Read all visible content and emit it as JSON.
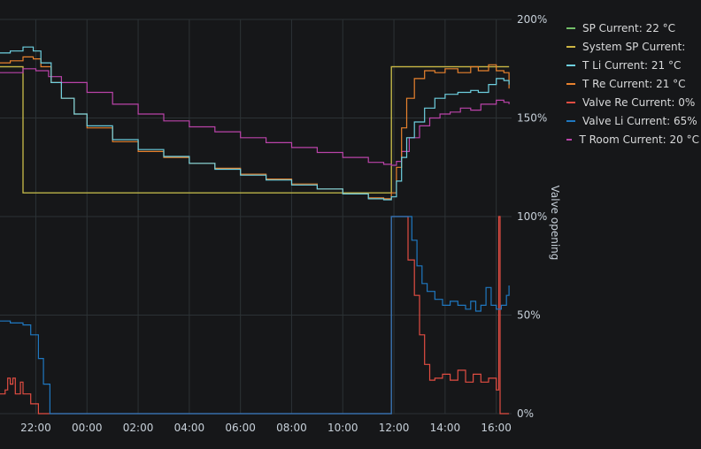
{
  "chart_data": {
    "type": "line",
    "y_axis": {
      "label": "Valve opening",
      "ticks": [
        "200%",
        "150%",
        "100%",
        "50%",
        "0%"
      ],
      "ylim": [
        0,
        200
      ]
    },
    "x_axis": {
      "ticks": [
        "22:00",
        "00:00",
        "02:00",
        "04:00",
        "06:00",
        "08:00",
        "10:00",
        "12:00",
        "14:00",
        "16:00"
      ],
      "tick_hours": [
        22,
        24,
        26,
        28,
        30,
        32,
        34,
        36,
        38,
        40
      ],
      "xlim_hours": [
        20.6,
        40.6
      ]
    },
    "grid": true,
    "legend_position": "right",
    "series": [
      {
        "name": "SP",
        "legend": "SP  Current: 22 °C",
        "color": "#73bf69",
        "points": [
          [
            20.6,
            176
          ],
          [
            21.5,
            176
          ],
          [
            21.5,
            112
          ],
          [
            35.9,
            112
          ],
          [
            35.9,
            176
          ],
          [
            40.5,
            176
          ]
        ]
      },
      {
        "name": "System SP",
        "legend": "System SP  Current:",
        "color": "#cdb543",
        "points": [
          [
            20.6,
            176
          ],
          [
            21.5,
            176
          ],
          [
            21.5,
            112
          ],
          [
            35.9,
            112
          ],
          [
            35.9,
            176
          ],
          [
            40.5,
            176
          ]
        ]
      },
      {
        "name": "T Li",
        "legend": "T Li  Current: 21 °C",
        "color": "#6ed0e0",
        "points": [
          [
            20.6,
            183
          ],
          [
            21.0,
            184
          ],
          [
            21.5,
            186
          ],
          [
            21.9,
            184
          ],
          [
            22.2,
            178
          ],
          [
            22.6,
            168
          ],
          [
            23.0,
            160
          ],
          [
            23.5,
            152
          ],
          [
            24.0,
            146
          ],
          [
            25.0,
            139
          ],
          [
            26.0,
            134
          ],
          [
            27.0,
            130.5
          ],
          [
            28.0,
            127
          ],
          [
            29.0,
            124
          ],
          [
            30.0,
            121
          ],
          [
            31.0,
            118.5
          ],
          [
            32.0,
            116
          ],
          [
            33.0,
            114
          ],
          [
            34.0,
            111.5
          ],
          [
            35.0,
            109
          ],
          [
            35.6,
            108.5
          ],
          [
            35.9,
            110
          ],
          [
            36.1,
            118
          ],
          [
            36.3,
            130
          ],
          [
            36.5,
            140
          ],
          [
            36.8,
            148
          ],
          [
            37.2,
            155
          ],
          [
            37.6,
            160
          ],
          [
            38.0,
            162
          ],
          [
            38.5,
            163
          ],
          [
            39.0,
            164
          ],
          [
            39.3,
            163
          ],
          [
            39.7,
            167
          ],
          [
            40.0,
            170
          ],
          [
            40.3,
            169
          ],
          [
            40.5,
            167
          ]
        ]
      },
      {
        "name": "T Re",
        "legend": "T Re  Current: 21 °C",
        "color": "#e8822e",
        "points": [
          [
            20.6,
            178
          ],
          [
            21.0,
            179
          ],
          [
            21.5,
            181
          ],
          [
            21.9,
            180
          ],
          [
            22.2,
            176
          ],
          [
            22.6,
            168
          ],
          [
            23.0,
            160
          ],
          [
            23.5,
            152
          ],
          [
            24.0,
            145
          ],
          [
            25.0,
            138
          ],
          [
            26.0,
            133
          ],
          [
            27.0,
            130
          ],
          [
            28.0,
            127
          ],
          [
            29.0,
            124.5
          ],
          [
            30.0,
            121.5
          ],
          [
            31.0,
            119
          ],
          [
            32.0,
            116.5
          ],
          [
            33.0,
            114
          ],
          [
            34.0,
            111.5
          ],
          [
            35.0,
            109.5
          ],
          [
            35.6,
            109
          ],
          [
            35.9,
            112
          ],
          [
            36.1,
            125
          ],
          [
            36.3,
            145
          ],
          [
            36.5,
            160
          ],
          [
            36.8,
            170
          ],
          [
            37.2,
            174
          ],
          [
            37.6,
            173
          ],
          [
            38.0,
            175
          ],
          [
            38.5,
            173
          ],
          [
            39.0,
            176
          ],
          [
            39.3,
            174
          ],
          [
            39.7,
            177
          ],
          [
            40.0,
            174
          ],
          [
            40.3,
            173
          ],
          [
            40.5,
            165
          ]
        ]
      },
      {
        "name": "Valve Re",
        "legend": "Valve Re  Current: 0%",
        "color": "#e24d42",
        "points": [
          [
            20.6,
            10
          ],
          [
            20.8,
            12
          ],
          [
            20.9,
            18
          ],
          [
            21.0,
            15
          ],
          [
            21.1,
            18
          ],
          [
            21.2,
            10
          ],
          [
            21.4,
            16
          ],
          [
            21.5,
            10
          ],
          [
            21.8,
            5
          ],
          [
            22.1,
            0
          ],
          [
            35.9,
            0
          ],
          [
            35.9,
            100
          ],
          [
            36.4,
            100
          ],
          [
            36.55,
            78
          ],
          [
            36.8,
            60
          ],
          [
            37.0,
            40
          ],
          [
            37.2,
            25
          ],
          [
            37.4,
            17
          ],
          [
            37.6,
            18
          ],
          [
            37.9,
            20
          ],
          [
            38.2,
            17
          ],
          [
            38.5,
            22
          ],
          [
            38.8,
            16
          ],
          [
            39.1,
            20
          ],
          [
            39.4,
            16
          ],
          [
            39.7,
            18
          ],
          [
            40.0,
            12
          ],
          [
            40.1,
            100
          ],
          [
            40.15,
            0
          ],
          [
            40.5,
            0
          ]
        ]
      },
      {
        "name": "Valve Li",
        "legend": "Valve Li  Current: 65%",
        "color": "#1f78c1",
        "points": [
          [
            20.6,
            47
          ],
          [
            21.0,
            46
          ],
          [
            21.5,
            45
          ],
          [
            21.8,
            40
          ],
          [
            22.1,
            28
          ],
          [
            22.3,
            15
          ],
          [
            22.55,
            0
          ],
          [
            35.9,
            0
          ],
          [
            35.9,
            100
          ],
          [
            36.5,
            100
          ],
          [
            36.7,
            88
          ],
          [
            36.9,
            75
          ],
          [
            37.1,
            66
          ],
          [
            37.3,
            62
          ],
          [
            37.6,
            58
          ],
          [
            37.9,
            55
          ],
          [
            38.2,
            57
          ],
          [
            38.5,
            55
          ],
          [
            38.8,
            53
          ],
          [
            39.0,
            57
          ],
          [
            39.2,
            52
          ],
          [
            39.4,
            55
          ],
          [
            39.6,
            64
          ],
          [
            39.8,
            55
          ],
          [
            40.0,
            53
          ],
          [
            40.2,
            55
          ],
          [
            40.4,
            60
          ],
          [
            40.5,
            65
          ]
        ]
      },
      {
        "name": "T Room",
        "legend": "T Room  Current: 20 °C",
        "color": "#ba43a9",
        "points": [
          [
            20.6,
            173
          ],
          [
            21.0,
            173
          ],
          [
            21.5,
            175
          ],
          [
            22.0,
            174
          ],
          [
            22.5,
            171
          ],
          [
            23.0,
            168
          ],
          [
            24.0,
            163
          ],
          [
            25.0,
            157
          ],
          [
            26.0,
            152
          ],
          [
            27.0,
            148.5
          ],
          [
            28.0,
            145.5
          ],
          [
            29.0,
            143
          ],
          [
            30.0,
            140
          ],
          [
            31.0,
            137.5
          ],
          [
            32.0,
            135
          ],
          [
            33.0,
            132.5
          ],
          [
            34.0,
            130
          ],
          [
            35.0,
            127.5
          ],
          [
            35.6,
            126.5
          ],
          [
            35.9,
            126
          ],
          [
            36.1,
            128
          ],
          [
            36.3,
            133
          ],
          [
            36.6,
            140
          ],
          [
            37.0,
            146
          ],
          [
            37.4,
            150
          ],
          [
            37.8,
            152
          ],
          [
            38.2,
            153
          ],
          [
            38.6,
            155
          ],
          [
            39.0,
            154
          ],
          [
            39.4,
            157
          ],
          [
            39.8,
            157
          ],
          [
            40.0,
            159
          ],
          [
            40.3,
            158
          ],
          [
            40.5,
            157
          ]
        ]
      }
    ]
  }
}
